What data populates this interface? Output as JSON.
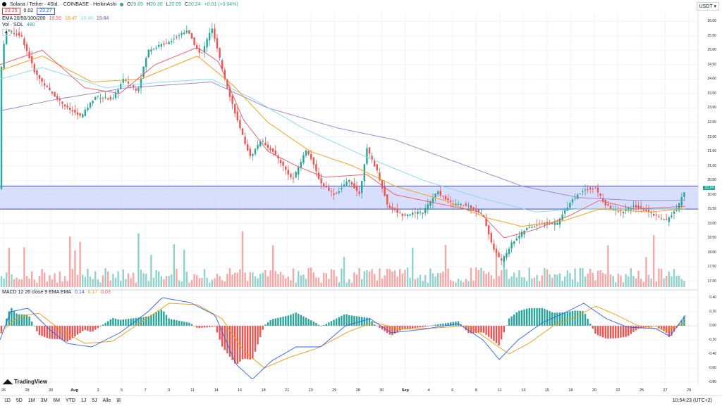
{
  "header": {
    "symbol": "Solana / Tether · 4Std. · COINBASE · HeikinAshi",
    "ohlc": {
      "o_label": "O",
      "o": "20.05",
      "h_label": "H",
      "h": "20.30",
      "l_label": "L",
      "l": "20.05",
      "c_label": "C",
      "c": "20.24",
      "chg": "+0.01 (+0.04%)"
    },
    "bid": "23.25",
    "spread": "0.02",
    "ask": "23.27",
    "ema_label": "EMA 20/50/100/200",
    "ema_values": [
      "19.56",
      "19.47",
      "19.48",
      "19.84"
    ],
    "vol_label": "Vol · SOL",
    "vol_value": "480",
    "macd_label": "MACD 12 26 close 9 EMA EMA",
    "macd_values": [
      "0.14",
      "0.17",
      "0.03"
    ],
    "currency": "USDT ▾",
    "collapse": "▴"
  },
  "colors": {
    "up": "#26a69a",
    "down": "#ef5350",
    "vol_up": "#8fd3cc",
    "vol_down": "#f7a8a6",
    "ema20": "#f7525f",
    "ema50": "#ff9800",
    "ema100": "#7fdbe8",
    "ema200": "#9c7bd8",
    "macd": "#2962ff",
    "signal": "#ff9800",
    "zone": "#c7d1fb",
    "zone_line": "#4051b5"
  },
  "chart_data": {
    "type": "candlestick",
    "y_ticks": [
      "26.00",
      "25.50",
      "25.00",
      "24.50",
      "24.00",
      "23.50",
      "23.00",
      "22.50",
      "22.00",
      "21.50",
      "21.00",
      "20.50",
      "20.00",
      "19.50",
      "19.00",
      "18.50",
      "18.00",
      "17.50",
      "17.00"
    ],
    "macd_ticks": [
      "0.40",
      "0.20",
      "0.00",
      "-0.20",
      "-0.40",
      "-0.60",
      "-0.80"
    ],
    "x_ticks": [
      "26",
      "28",
      "30",
      "Aug",
      "3",
      "5",
      "7",
      "9",
      "11",
      "14",
      "16",
      "18",
      "21",
      "23",
      "25",
      "28",
      "30",
      "Sep",
      "4",
      "6",
      "8",
      "11",
      "13",
      "15",
      "18",
      "20",
      "22",
      "25",
      "27",
      "29"
    ],
    "ylim": [
      16.8,
      26.3
    ],
    "macd_ylim": [
      -0.85,
      0.45
    ],
    "zone": [
      19.5,
      20.3
    ],
    "last_price": "20.24",
    "anchors": [
      [
        0,
        24.0
      ],
      [
        8,
        25.7
      ],
      [
        30,
        25.5
      ],
      [
        50,
        24.2
      ],
      [
        70,
        23.6
      ],
      [
        95,
        23.0
      ],
      [
        115,
        22.7
      ],
      [
        135,
        23.4
      ],
      [
        160,
        23.3
      ],
      [
        175,
        24.0
      ],
      [
        195,
        23.6
      ],
      [
        210,
        25.0
      ],
      [
        240,
        25.3
      ],
      [
        265,
        25.7
      ],
      [
        285,
        24.8
      ],
      [
        300,
        25.8
      ],
      [
        320,
        23.9
      ],
      [
        340,
        22.3
      ],
      [
        355,
        21.3
      ],
      [
        370,
        21.9
      ],
      [
        390,
        21.4
      ],
      [
        415,
        20.5
      ],
      [
        435,
        21.6
      ],
      [
        455,
        20.4
      ],
      [
        475,
        20.0
      ],
      [
        495,
        20.5
      ],
      [
        510,
        20.0
      ],
      [
        520,
        21.6
      ],
      [
        535,
        20.8
      ],
      [
        550,
        19.6
      ],
      [
        570,
        19.3
      ],
      [
        600,
        19.4
      ],
      [
        620,
        20.1
      ],
      [
        640,
        19.7
      ],
      [
        665,
        19.6
      ],
      [
        685,
        19.3
      ],
      [
        700,
        18.1
      ],
      [
        712,
        17.7
      ],
      [
        725,
        18.3
      ],
      [
        745,
        18.8
      ],
      [
        765,
        19.0
      ],
      [
        790,
        19.0
      ],
      [
        810,
        19.8
      ],
      [
        830,
        20.2
      ],
      [
        845,
        20.2
      ],
      [
        860,
        19.6
      ],
      [
        880,
        19.4
      ],
      [
        900,
        19.6
      ],
      [
        920,
        19.4
      ],
      [
        945,
        19.1
      ],
      [
        960,
        19.5
      ],
      [
        972,
        20.2
      ]
    ],
    "ema20_anchors": [
      [
        0,
        24.5
      ],
      [
        60,
        25.0
      ],
      [
        120,
        23.7
      ],
      [
        170,
        23.5
      ],
      [
        220,
        24.5
      ],
      [
        280,
        25.1
      ],
      [
        310,
        24.6
      ],
      [
        345,
        22.6
      ],
      [
        380,
        21.5
      ],
      [
        420,
        21.0
      ],
      [
        460,
        20.6
      ],
      [
        520,
        20.7
      ],
      [
        560,
        20.0
      ],
      [
        620,
        19.7
      ],
      [
        680,
        19.4
      ],
      [
        715,
        18.5
      ],
      [
        760,
        18.8
      ],
      [
        810,
        19.3
      ],
      [
        850,
        19.8
      ],
      [
        900,
        19.5
      ],
      [
        972,
        19.6
      ]
    ],
    "ema50_anchors": [
      [
        0,
        24.3
      ],
      [
        60,
        24.8
      ],
      [
        130,
        23.9
      ],
      [
        200,
        24.0
      ],
      [
        280,
        24.8
      ],
      [
        330,
        23.8
      ],
      [
        380,
        22.5
      ],
      [
        440,
        21.5
      ],
      [
        500,
        21.0
      ],
      [
        560,
        20.3
      ],
      [
        630,
        19.8
      ],
      [
        690,
        19.2
      ],
      [
        740,
        18.9
      ],
      [
        800,
        19.1
      ],
      [
        850,
        19.5
      ],
      [
        920,
        19.4
      ],
      [
        972,
        19.5
      ]
    ],
    "ema100_anchors": [
      [
        0,
        24.0
      ],
      [
        60,
        24.4
      ],
      [
        150,
        23.7
      ],
      [
        230,
        23.9
      ],
      [
        300,
        24.0
      ],
      [
        360,
        23.3
      ],
      [
        430,
        22.3
      ],
      [
        520,
        21.3
      ],
      [
        600,
        20.5
      ],
      [
        680,
        19.9
      ],
      [
        760,
        19.4
      ],
      [
        820,
        19.5
      ],
      [
        880,
        19.5
      ],
      [
        972,
        19.5
      ]
    ],
    "ema200_anchors": [
      [
        0,
        22.9
      ],
      [
        80,
        23.3
      ],
      [
        180,
        23.7
      ],
      [
        300,
        23.9
      ],
      [
        380,
        23.0
      ],
      [
        480,
        22.3
      ],
      [
        560,
        21.9
      ],
      [
        650,
        21.1
      ],
      [
        740,
        20.3
      ],
      [
        820,
        19.9
      ],
      [
        900,
        19.8
      ],
      [
        972,
        19.8
      ]
    ],
    "macd_anchors": [
      [
        0,
        -0.2
      ],
      [
        15,
        0.2
      ],
      [
        40,
        0.25
      ],
      [
        70,
        -0.05
      ],
      [
        95,
        -0.25
      ],
      [
        130,
        -0.3
      ],
      [
        170,
        -0.1
      ],
      [
        210,
        0.2
      ],
      [
        230,
        0.4
      ],
      [
        270,
        0.33
      ],
      [
        305,
        0.15
      ],
      [
        335,
        -0.55
      ],
      [
        358,
        -0.76
      ],
      [
        385,
        -0.5
      ],
      [
        420,
        -0.3
      ],
      [
        455,
        -0.3
      ],
      [
        490,
        0.0
      ],
      [
        525,
        0.1
      ],
      [
        555,
        -0.1
      ],
      [
        600,
        -0.05
      ],
      [
        650,
        0.03
      ],
      [
        685,
        -0.2
      ],
      [
        708,
        -0.48
      ],
      [
        735,
        -0.2
      ],
      [
        770,
        0.05
      ],
      [
        800,
        0.18
      ],
      [
        828,
        0.32
      ],
      [
        860,
        0.1
      ],
      [
        890,
        -0.02
      ],
      [
        930,
        -0.04
      ],
      [
        950,
        -0.15
      ],
      [
        972,
        0.15
      ]
    ],
    "signal_anchors": [
      [
        0,
        -0.1
      ],
      [
        25,
        0.12
      ],
      [
        55,
        0.18
      ],
      [
        85,
        -0.05
      ],
      [
        120,
        -0.25
      ],
      [
        160,
        -0.22
      ],
      [
        200,
        0.05
      ],
      [
        240,
        0.32
      ],
      [
        280,
        0.3
      ],
      [
        315,
        0.1
      ],
      [
        345,
        -0.35
      ],
      [
        375,
        -0.6
      ],
      [
        410,
        -0.45
      ],
      [
        450,
        -0.32
      ],
      [
        495,
        -0.08
      ],
      [
        530,
        0.05
      ],
      [
        570,
        -0.05
      ],
      [
        620,
        -0.03
      ],
      [
        665,
        0.0
      ],
      [
        700,
        -0.25
      ],
      [
        722,
        -0.4
      ],
      [
        750,
        -0.25
      ],
      [
        785,
        0.0
      ],
      [
        815,
        0.12
      ],
      [
        845,
        0.28
      ],
      [
        875,
        0.15
      ],
      [
        905,
        0.0
      ],
      [
        945,
        -0.06
      ],
      [
        972,
        0.05
      ]
    ]
  }
}
